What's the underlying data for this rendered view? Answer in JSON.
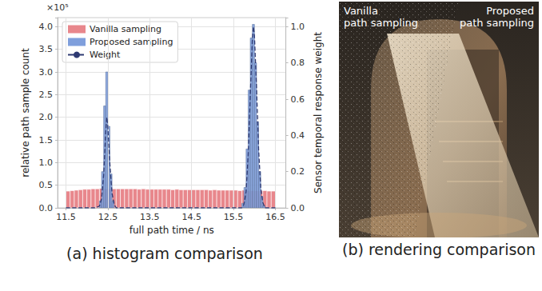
{
  "chart_data": {
    "type": "histogram",
    "caption": "(a) histogram comparison",
    "xlabel": "full path time / ns",
    "ylabel": "relative path sample count",
    "y2label": "Sensor temporal response weight",
    "y_multiplier": "×10⁵",
    "xlim": [
      11.3,
      16.75
    ],
    "xticks": [
      11.5,
      12.5,
      13.5,
      14.5,
      15.5,
      16.5
    ],
    "ylim": [
      0,
      4.2
    ],
    "yticks": [
      {
        "value": 0,
        "label": "0.0"
      },
      0.5,
      {
        "value": 1,
        "label": "1.0"
      },
      1.5,
      {
        "value": 2,
        "label": "2.0"
      },
      2.5,
      {
        "value": 3,
        "label": "3.0"
      },
      3.5,
      {
        "value": 4,
        "label": "4.0"
      }
    ],
    "y2lim": [
      0,
      1.05
    ],
    "y2ticks": [
      {
        "value": 0,
        "label": "0.0"
      },
      0.2,
      0.4,
      0.6,
      0.8,
      {
        "value": 1,
        "label": "1.0"
      }
    ],
    "grid": true,
    "legend": "top-left",
    "series": [
      {
        "name": "Vanilla sampling",
        "type": "histogram",
        "color": "#e8878c",
        "bins": [
          11.5,
          11.6,
          11.7,
          11.8,
          11.9,
          12,
          12.1,
          12.2,
          12.3,
          12.4,
          12.5,
          12.6,
          12.7,
          12.8,
          12.9,
          13,
          13.1,
          13.2,
          13.3,
          13.4,
          13.5,
          13.6,
          13.7,
          13.8,
          13.9,
          14,
          14.1,
          14.2,
          14.3,
          14.4,
          14.5,
          14.6,
          14.7,
          14.8,
          14.9,
          15,
          15.1,
          15.2,
          15.3,
          15.4,
          15.5,
          15.6,
          15.7,
          15.8,
          15.9,
          16,
          16.1,
          16.2,
          16.3,
          16.4,
          16.5
        ],
        "values": [
          0.37,
          0.38,
          0.39,
          0.4,
          0.41,
          0.41,
          0.42,
          0.42,
          0.43,
          0.42,
          0.42,
          0.42,
          0.42,
          0.42,
          0.42,
          0.42,
          0.42,
          0.41,
          0.42,
          0.41,
          0.41,
          0.41,
          0.41,
          0.41,
          0.41,
          0.4,
          0.41,
          0.4,
          0.4,
          0.4,
          0.4,
          0.4,
          0.4,
          0.4,
          0.39,
          0.4,
          0.39,
          0.39,
          0.39,
          0.39,
          0.39,
          0.38,
          0.39,
          0.38,
          0.38,
          0.38,
          0.38,
          0.38,
          0.37,
          0.37
        ]
      },
      {
        "name": "Proposed sampling",
        "type": "histogram",
        "color": "#7f9fdc",
        "bins": [
          11.5,
          11.55,
          11.6,
          11.65,
          11.7,
          11.75,
          11.8,
          11.85,
          11.9,
          11.95,
          12,
          12.05,
          12.1,
          12.15,
          12.2,
          12.25,
          12.3,
          12.35,
          12.4,
          12.45,
          12.5,
          12.55,
          12.6,
          12.65,
          12.7,
          12.75,
          12.8,
          12.85,
          12.9,
          12.95,
          13,
          13.05,
          13.1,
          13.15,
          13.2,
          13.25,
          13.3,
          13.35,
          13.4,
          13.45,
          13.5,
          13.55,
          13.6,
          13.65,
          13.7,
          13.75,
          13.8,
          13.85,
          13.9,
          13.95,
          14,
          14.05,
          14.1,
          14.15,
          14.2,
          14.25,
          14.3,
          14.35,
          14.4,
          14.45,
          14.5,
          14.55,
          14.6,
          14.65,
          14.7,
          14.75,
          14.8,
          14.85,
          14.9,
          14.95,
          15,
          15.05,
          15.1,
          15.15,
          15.2,
          15.25,
          15.3,
          15.35,
          15.4,
          15.45,
          15.5,
          15.55,
          15.6,
          15.65,
          15.7,
          15.75,
          15.8,
          15.85,
          15.9,
          15.95,
          16,
          16.05,
          16.1,
          16.15,
          16.2,
          16.25,
          16.3,
          16.35,
          16.4,
          16.45,
          16.5
        ],
        "values": [
          0,
          0,
          0,
          0,
          0,
          0,
          0,
          0,
          0,
          0,
          0,
          0,
          0,
          0,
          0,
          0,
          0.15,
          0.8,
          2.25,
          3,
          1.8,
          0.75,
          0.15,
          0,
          0,
          0,
          0,
          0,
          0,
          0,
          0,
          0,
          0,
          0,
          0,
          0,
          0,
          0,
          0,
          0,
          0,
          0,
          0,
          0,
          0,
          0,
          0,
          0,
          0,
          0,
          0,
          0,
          0,
          0,
          0,
          0,
          0,
          0,
          0,
          0,
          0,
          0,
          0,
          0,
          0,
          0,
          0,
          0,
          0,
          0,
          0,
          0,
          0,
          0,
          0,
          0,
          0,
          0,
          0,
          0,
          0,
          0,
          0,
          0,
          0.1,
          0.45,
          1.3,
          2.6,
          3.75,
          4.05,
          3.2,
          1.9,
          0.8,
          0.25,
          0.05,
          0,
          0,
          0,
          0,
          0
        ]
      },
      {
        "name": "Weight",
        "type": "line",
        "color": "#2e3a73",
        "line_style": "dashed",
        "axis": "y2",
        "x": [
          11.5,
          12.2,
          12.3,
          12.35,
          12.4,
          12.45,
          12.475,
          12.5,
          12.55,
          12.6,
          12.65,
          12.7,
          15.7,
          15.75,
          15.8,
          15.85,
          15.9,
          15.95,
          15.975,
          16,
          16.05,
          16.1,
          16.15,
          16.2,
          16.25,
          16.5
        ],
        "values": [
          0,
          0,
          0.01,
          0.05,
          0.18,
          0.42,
          0.5,
          0.45,
          0.24,
          0.08,
          0.02,
          0,
          0,
          0.02,
          0.09,
          0.29,
          0.62,
          0.93,
          1,
          0.95,
          0.66,
          0.32,
          0.11,
          0.03,
          0,
          0
        ]
      }
    ]
  },
  "rendering": {
    "caption": "(b) rendering comparison",
    "labels": {
      "left": "Vanilla path sampling",
      "right": "Proposed path sampling"
    }
  }
}
